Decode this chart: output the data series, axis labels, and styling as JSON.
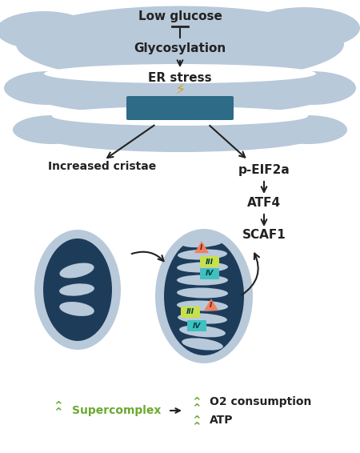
{
  "bg_color": "#ffffff",
  "er_color": "#b8c9d9",
  "mito_outer_color": "#b8c9d9",
  "mito_inner_color": "#1d3c5a",
  "box_color": "#2e6b87",
  "arrow_color": "#333333",
  "green_color": "#6aaa2e",
  "text_color": "#222222",
  "complex_I_color": "#f08060",
  "complex_III_color": "#c8e04a",
  "complex_IV_color": "#40c0c0",
  "labels": {
    "low_glucose": "Low glucose",
    "glycosylation": "Glycosylation",
    "er_stress": "ER stress",
    "increased_cristae": "Increased cristae",
    "p_eif2a": "p-EIF2a",
    "atf4": "ATF4",
    "scaf1": "SCAF1",
    "supercomplex": "Supercomplex",
    "o2": "O2 consumption",
    "atp": "ATP"
  }
}
